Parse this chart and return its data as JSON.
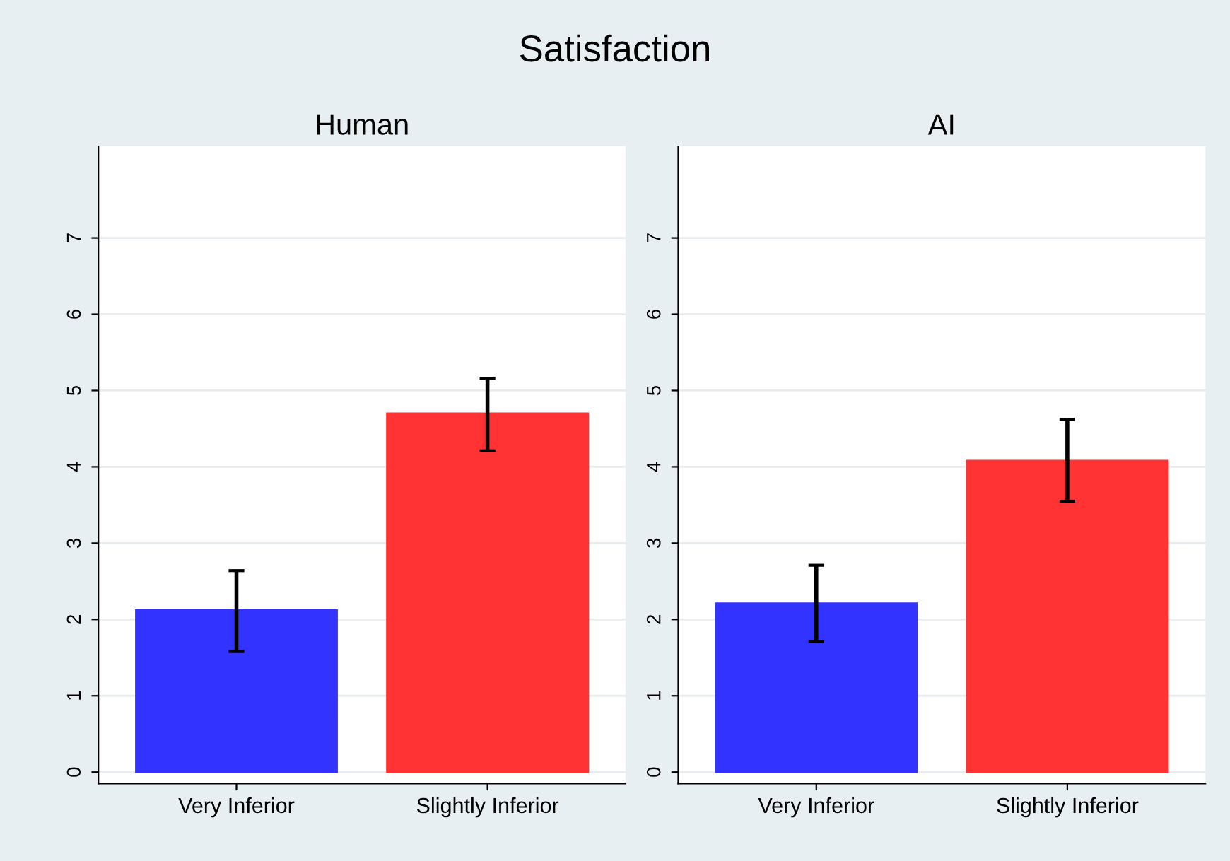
{
  "chart_data": [
    {
      "type": "bar",
      "title": "Human",
      "annotations": [
        "Satisfaction"
      ],
      "categories": [
        "Very Inferior",
        "Slightly Inferior"
      ],
      "values": [
        2.12,
        4.7
      ],
      "colors": [
        "#3333ff",
        "#ff3333"
      ],
      "errors": [
        [
          1.58,
          2.64
        ],
        [
          4.21,
          5.16
        ]
      ],
      "ylim": [
        -0.15,
        8.2
      ],
      "yticks": [
        0,
        1,
        2,
        3,
        4,
        5,
        6,
        7
      ],
      "grid": "y",
      "legend": false
    },
    {
      "type": "bar",
      "title": "AI",
      "categories": [
        "Very Inferior",
        "Slightly Inferior"
      ],
      "values": [
        2.21,
        4.08
      ],
      "colors": [
        "#3333ff",
        "#ff3333"
      ],
      "errors": [
        [
          1.71,
          2.71
        ],
        [
          3.55,
          4.62
        ]
      ],
      "ylim": [
        -0.15,
        8.2
      ],
      "yticks": [
        0,
        1,
        2,
        3,
        4,
        5,
        6,
        7
      ],
      "grid": "y",
      "legend": false
    }
  ]
}
